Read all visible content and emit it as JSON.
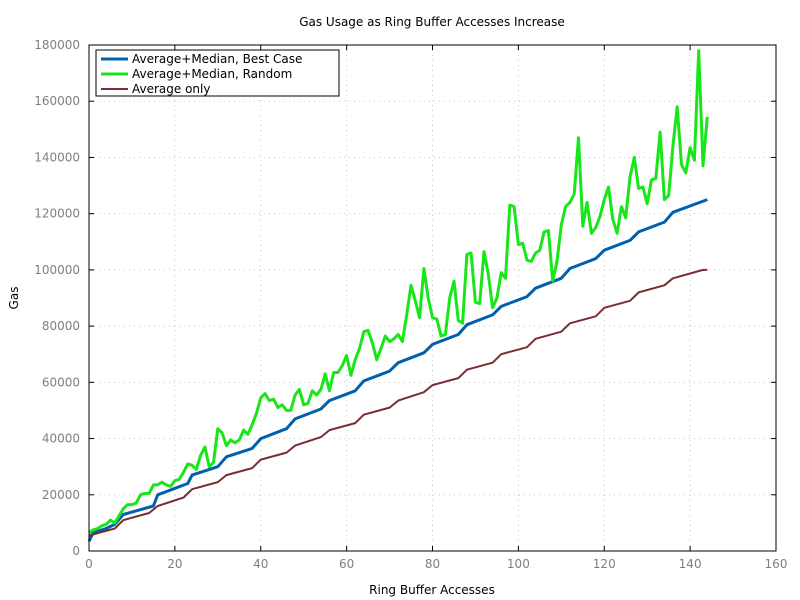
{
  "chart_data": {
    "type": "line",
    "title": "Gas Usage as Ring Buffer Accesses Increase",
    "xlabel": "Ring Buffer Accesses",
    "ylabel": "Gas",
    "xlim": [
      0,
      160
    ],
    "ylim": [
      0,
      180000
    ],
    "xticks": [
      0,
      20,
      40,
      60,
      80,
      100,
      120,
      140,
      160
    ],
    "yticks": [
      0,
      20000,
      40000,
      60000,
      80000,
      100000,
      120000,
      140000,
      160000,
      180000
    ],
    "grid": true,
    "legend_position": "top-left",
    "series": [
      {
        "name": "Average+Median, Best Case",
        "color": "#0060ad",
        "width": 3,
        "points": [
          [
            0,
            3500
          ],
          [
            1,
            6500
          ],
          [
            4,
            8000
          ],
          [
            6,
            9500
          ],
          [
            8,
            13000
          ],
          [
            15,
            16000
          ],
          [
            16,
            20000
          ],
          [
            23,
            24000
          ],
          [
            24,
            27000
          ],
          [
            30,
            30000
          ],
          [
            32,
            33500
          ],
          [
            38,
            36500
          ],
          [
            40,
            40000
          ],
          [
            46,
            43500
          ],
          [
            48,
            47000
          ],
          [
            54,
            50500
          ],
          [
            56,
            53500
          ],
          [
            62,
            57000
          ],
          [
            64,
            60500
          ],
          [
            70,
            64000
          ],
          [
            72,
            67000
          ],
          [
            78,
            70500
          ],
          [
            80,
            73500
          ],
          [
            86,
            77000
          ],
          [
            88,
            80500
          ],
          [
            94,
            84000
          ],
          [
            96,
            87000
          ],
          [
            102,
            90500
          ],
          [
            104,
            93500
          ],
          [
            110,
            97000
          ],
          [
            112,
            100500
          ],
          [
            118,
            104000
          ],
          [
            120,
            107000
          ],
          [
            126,
            110500
          ],
          [
            128,
            113500
          ],
          [
            134,
            117000
          ],
          [
            136,
            120500
          ],
          [
            144,
            125000
          ]
        ]
      },
      {
        "name": "Average+Median, Random",
        "color": "#19e619",
        "width": 3,
        "points": [
          [
            0,
            6500
          ],
          [
            1,
            7500
          ],
          [
            2,
            8000
          ],
          [
            3,
            9000
          ],
          [
            4,
            9500
          ],
          [
            5,
            11000
          ],
          [
            6,
            10000
          ],
          [
            7,
            12500
          ],
          [
            8,
            15000
          ],
          [
            9,
            16500
          ],
          [
            10,
            16500
          ],
          [
            11,
            17000
          ],
          [
            12,
            20000
          ],
          [
            13,
            20500
          ],
          [
            14,
            20500
          ],
          [
            15,
            23500
          ],
          [
            16,
            23500
          ],
          [
            17,
            24500
          ],
          [
            18,
            23500
          ],
          [
            19,
            23000
          ],
          [
            20,
            25000
          ],
          [
            21,
            25500
          ],
          [
            22,
            28000
          ],
          [
            23,
            31000
          ],
          [
            24,
            30500
          ],
          [
            25,
            29000
          ],
          [
            26,
            34000
          ],
          [
            27,
            37000
          ],
          [
            28,
            30000
          ],
          [
            29,
            31500
          ],
          [
            30,
            43500
          ],
          [
            31,
            42000
          ],
          [
            32,
            37500
          ],
          [
            33,
            39500
          ],
          [
            34,
            38500
          ],
          [
            35,
            39500
          ],
          [
            36,
            43000
          ],
          [
            37,
            41500
          ],
          [
            38,
            45000
          ],
          [
            39,
            49000
          ],
          [
            40,
            54500
          ],
          [
            41,
            56000
          ],
          [
            42,
            53500
          ],
          [
            43,
            54000
          ],
          [
            44,
            51000
          ],
          [
            45,
            52000
          ],
          [
            46,
            50000
          ],
          [
            47,
            50000
          ],
          [
            48,
            55500
          ],
          [
            49,
            57500
          ],
          [
            50,
            52000
          ],
          [
            51,
            52500
          ],
          [
            52,
            57000
          ],
          [
            53,
            55500
          ],
          [
            54,
            57500
          ],
          [
            55,
            63000
          ],
          [
            56,
            57000
          ],
          [
            57,
            63500
          ],
          [
            58,
            63500
          ],
          [
            59,
            66000
          ],
          [
            60,
            69500
          ],
          [
            61,
            62500
          ],
          [
            62,
            68000
          ],
          [
            63,
            72000
          ],
          [
            64,
            78000
          ],
          [
            65,
            78500
          ],
          [
            66,
            74000
          ],
          [
            67,
            68000
          ],
          [
            68,
            72000
          ],
          [
            69,
            76500
          ],
          [
            70,
            74500
          ],
          [
            71,
            75500
          ],
          [
            72,
            77000
          ],
          [
            73,
            74500
          ],
          [
            74,
            84000
          ],
          [
            75,
            94500
          ],
          [
            76,
            89000
          ],
          [
            77,
            83000
          ],
          [
            78,
            100500
          ],
          [
            79,
            90000
          ],
          [
            80,
            83000
          ],
          [
            81,
            82500
          ],
          [
            82,
            76500
          ],
          [
            83,
            77000
          ],
          [
            84,
            90000
          ],
          [
            85,
            96000
          ],
          [
            86,
            82000
          ],
          [
            87,
            81000
          ],
          [
            88,
            105500
          ],
          [
            89,
            106000
          ],
          [
            90,
            88500
          ],
          [
            91,
            88000
          ],
          [
            92,
            106500
          ],
          [
            93,
            98500
          ],
          [
            94,
            86500
          ],
          [
            95,
            90000
          ],
          [
            96,
            99000
          ],
          [
            97,
            97000
          ],
          [
            98,
            123000
          ],
          [
            99,
            122500
          ],
          [
            100,
            109000
          ],
          [
            101,
            109500
          ],
          [
            102,
            103500
          ],
          [
            103,
            103000
          ],
          [
            104,
            106000
          ],
          [
            105,
            107000
          ],
          [
            106,
            113500
          ],
          [
            107,
            114000
          ],
          [
            108,
            96000
          ],
          [
            109,
            103000
          ],
          [
            110,
            116000
          ],
          [
            111,
            122500
          ],
          [
            112,
            124000
          ],
          [
            113,
            127000
          ],
          [
            114,
            147000
          ],
          [
            115,
            115500
          ],
          [
            116,
            124000
          ],
          [
            117,
            113000
          ],
          [
            118,
            115000
          ],
          [
            119,
            119000
          ],
          [
            120,
            125000
          ],
          [
            121,
            129500
          ],
          [
            122,
            118000
          ],
          [
            123,
            113000
          ],
          [
            124,
            122500
          ],
          [
            125,
            118500
          ],
          [
            126,
            133000
          ],
          [
            127,
            140000
          ],
          [
            128,
            129000
          ],
          [
            129,
            129500
          ],
          [
            130,
            123500
          ],
          [
            131,
            132000
          ],
          [
            132,
            132500
          ],
          [
            133,
            149000
          ],
          [
            134,
            125000
          ],
          [
            135,
            126500
          ],
          [
            136,
            144000
          ],
          [
            137,
            158000
          ],
          [
            138,
            137500
          ],
          [
            139,
            134500
          ],
          [
            140,
            143500
          ],
          [
            141,
            139000
          ],
          [
            142,
            178000
          ],
          [
            143,
            137000
          ],
          [
            144,
            154500
          ]
        ]
      },
      {
        "name": "Average only",
        "color": "#7a2d33",
        "width": 2,
        "points": [
          [
            0,
            5500
          ],
          [
            6,
            8000
          ],
          [
            8,
            11000
          ],
          [
            14,
            13500
          ],
          [
            16,
            16000
          ],
          [
            22,
            19000
          ],
          [
            24,
            22000
          ],
          [
            30,
            24500
          ],
          [
            32,
            27000
          ],
          [
            38,
            29500
          ],
          [
            40,
            32500
          ],
          [
            46,
            35000
          ],
          [
            48,
            37500
          ],
          [
            54,
            40500
          ],
          [
            56,
            43000
          ],
          [
            62,
            45500
          ],
          [
            64,
            48500
          ],
          [
            70,
            51000
          ],
          [
            72,
            53500
          ],
          [
            78,
            56500
          ],
          [
            80,
            59000
          ],
          [
            86,
            61500
          ],
          [
            88,
            64500
          ],
          [
            94,
            67000
          ],
          [
            96,
            70000
          ],
          [
            102,
            72500
          ],
          [
            104,
            75500
          ],
          [
            110,
            78000
          ],
          [
            112,
            81000
          ],
          [
            118,
            83500
          ],
          [
            120,
            86500
          ],
          [
            126,
            89000
          ],
          [
            128,
            92000
          ],
          [
            134,
            94500
          ],
          [
            136,
            97000
          ],
          [
            143,
            100000
          ],
          [
            144,
            100000
          ]
        ]
      }
    ]
  }
}
